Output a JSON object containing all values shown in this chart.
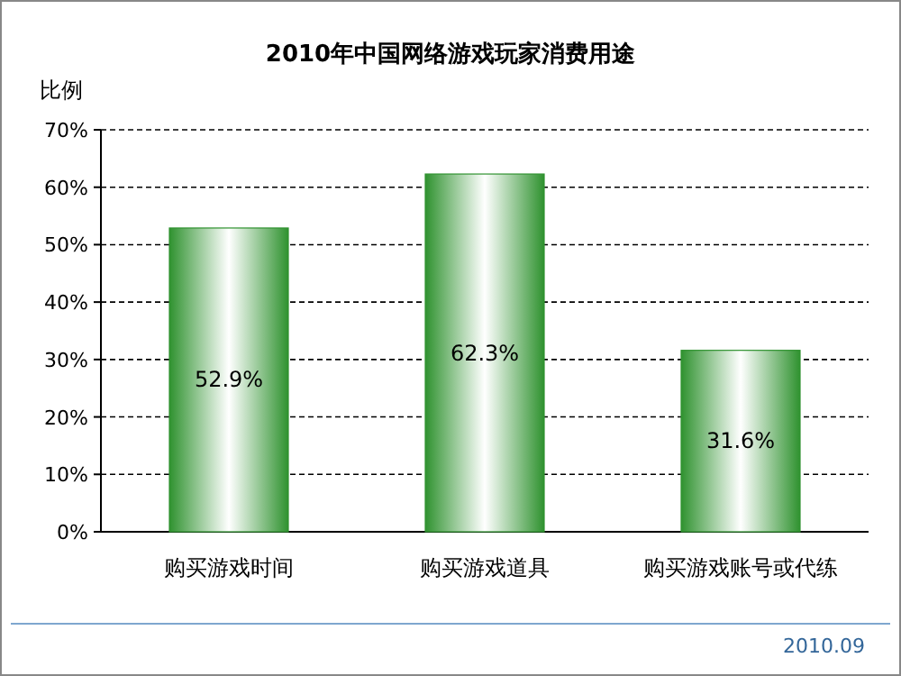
{
  "chart_data": {
    "type": "bar",
    "title": "2010年中国网络游戏玩家消费用途",
    "ylabel": "比例",
    "categories": [
      "购买游戏时间",
      "购买游戏道具",
      "购买游戏账号或代练"
    ],
    "values": [
      52.9,
      62.3,
      31.6
    ],
    "value_labels": [
      "52.9%",
      "62.3%",
      "31.6%"
    ],
    "color": "#2f922f",
    "ylim": [
      0,
      70
    ],
    "yticks": [
      {
        "value": 0,
        "label": "0%"
      },
      {
        "value": 10,
        "label": "10%"
      },
      {
        "value": 20,
        "label": "20%"
      },
      {
        "value": 30,
        "label": "30%"
      },
      {
        "value": 40,
        "label": "40%"
      },
      {
        "value": 50,
        "label": "50%"
      },
      {
        "value": 60,
        "label": "60%"
      },
      {
        "value": 70,
        "label": "70%"
      }
    ],
    "grid": "y",
    "annotations": [
      "2010.09"
    ]
  }
}
